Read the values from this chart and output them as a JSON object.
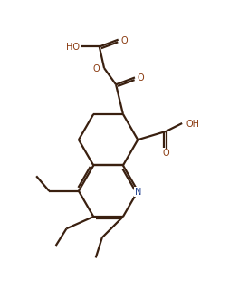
{
  "bg_color": "#ffffff",
  "line_color": "#3a2010",
  "bond_lw": 1.6,
  "figsize": [
    2.64,
    3.31
  ],
  "dpi": 100,
  "xlim": [
    0,
    10
  ],
  "ylim": [
    0,
    12.5
  ],
  "font_size": 7.0,
  "font_color": "#3a2010",
  "N_color": "#1a3a8a",
  "O_color": "#8a3a10"
}
